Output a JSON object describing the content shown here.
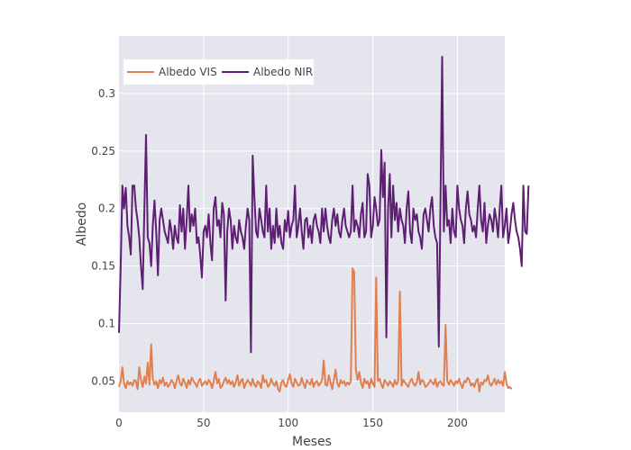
{
  "chart_data": {
    "type": "line",
    "title": "",
    "xlabel": "Meses",
    "ylabel": "Albedo",
    "xlim": [
      0,
      228
    ],
    "ylim": [
      0.023,
      0.35
    ],
    "x_ticks": [
      0,
      50,
      100,
      150,
      200
    ],
    "y_ticks": [
      0.05,
      0.1,
      0.15,
      0.2,
      0.25,
      0.3
    ],
    "y_tick_labels": [
      "0.05",
      "0.1",
      "0.15",
      "0.2",
      "0.25",
      "0.3"
    ],
    "grid": true,
    "legend_position": "top-left",
    "series": [
      {
        "name": "Albedo VIS",
        "color": "#e07f4f",
        "x_start": 0,
        "x_step": 1,
        "values": [
          0.045,
          0.05,
          0.062,
          0.048,
          0.044,
          0.05,
          0.047,
          0.049,
          0.046,
          0.051,
          0.05,
          0.043,
          0.062,
          0.051,
          0.045,
          0.054,
          0.048,
          0.066,
          0.047,
          0.082,
          0.052,
          0.047,
          0.05,
          0.044,
          0.051,
          0.048,
          0.053,
          0.046,
          0.049,
          0.045,
          0.047,
          0.051,
          0.049,
          0.044,
          0.05,
          0.055,
          0.048,
          0.046,
          0.052,
          0.049,
          0.044,
          0.051,
          0.047,
          0.053,
          0.05,
          0.048,
          0.045,
          0.05,
          0.052,
          0.046,
          0.048,
          0.05,
          0.047,
          0.051,
          0.049,
          0.044,
          0.05,
          0.058,
          0.048,
          0.052,
          0.044,
          0.046,
          0.05,
          0.053,
          0.048,
          0.051,
          0.047,
          0.05,
          0.045,
          0.049,
          0.055,
          0.046,
          0.05,
          0.052,
          0.044,
          0.048,
          0.051,
          0.049,
          0.046,
          0.052,
          0.047,
          0.045,
          0.05,
          0.048,
          0.044,
          0.055,
          0.049,
          0.051,
          0.045,
          0.047,
          0.052,
          0.048,
          0.046,
          0.05,
          0.043,
          0.041,
          0.049,
          0.051,
          0.046,
          0.045,
          0.051,
          0.056,
          0.048,
          0.045,
          0.052,
          0.049,
          0.046,
          0.047,
          0.053,
          0.048,
          0.044,
          0.051,
          0.049,
          0.047,
          0.052,
          0.045,
          0.049,
          0.05,
          0.046,
          0.048,
          0.051,
          0.068,
          0.047,
          0.046,
          0.055,
          0.049,
          0.043,
          0.051,
          0.06,
          0.048,
          0.045,
          0.051,
          0.048,
          0.05,
          0.046,
          0.049,
          0.047,
          0.05,
          0.148,
          0.145,
          0.06,
          0.051,
          0.058,
          0.049,
          0.044,
          0.052,
          0.048,
          0.05,
          0.044,
          0.052,
          0.048,
          0.045,
          0.14,
          0.05,
          0.052,
          0.047,
          0.044,
          0.051,
          0.049,
          0.046,
          0.05,
          0.048,
          0.045,
          0.051,
          0.047,
          0.05,
          0.128,
          0.046,
          0.051,
          0.049,
          0.047,
          0.045,
          0.05,
          0.052,
          0.048,
          0.046,
          0.049,
          0.058,
          0.047,
          0.051,
          0.05,
          0.045,
          0.046,
          0.048,
          0.051,
          0.049,
          0.047,
          0.052,
          0.045,
          0.049,
          0.05,
          0.047,
          0.046,
          0.099,
          0.05,
          0.047,
          0.051,
          0.049,
          0.046,
          0.05,
          0.048,
          0.052,
          0.047,
          0.044,
          0.05,
          0.049,
          0.053,
          0.051,
          0.046,
          0.048,
          0.045,
          0.05,
          0.052,
          0.041,
          0.049,
          0.047,
          0.051,
          0.05,
          0.055,
          0.048,
          0.046,
          0.049,
          0.052,
          0.047,
          0.051,
          0.048,
          0.05,
          0.046,
          0.058,
          0.048,
          0.044,
          0.045,
          0.043
        ]
      },
      {
        "name": "Albedo NIR",
        "color": "#5d1e73",
        "x_start": 0,
        "x_step": 1,
        "values": [
          0.092,
          0.15,
          0.22,
          0.2,
          0.218,
          0.185,
          0.175,
          0.16,
          0.22,
          0.22,
          0.2,
          0.19,
          0.175,
          0.15,
          0.13,
          0.2,
          0.264,
          0.175,
          0.17,
          0.15,
          0.185,
          0.207,
          0.18,
          0.142,
          0.19,
          0.2,
          0.19,
          0.18,
          0.175,
          0.17,
          0.19,
          0.18,
          0.165,
          0.185,
          0.175,
          0.17,
          0.203,
          0.18,
          0.2,
          0.165,
          0.19,
          0.22,
          0.18,
          0.195,
          0.185,
          0.2,
          0.17,
          0.175,
          0.16,
          0.14,
          0.18,
          0.185,
          0.175,
          0.195,
          0.17,
          0.155,
          0.2,
          0.21,
          0.185,
          0.19,
          0.175,
          0.205,
          0.195,
          0.12,
          0.18,
          0.2,
          0.19,
          0.165,
          0.185,
          0.175,
          0.17,
          0.19,
          0.18,
          0.175,
          0.165,
          0.185,
          0.2,
          0.19,
          0.075,
          0.246,
          0.21,
          0.18,
          0.175,
          0.2,
          0.19,
          0.18,
          0.175,
          0.22,
          0.18,
          0.2,
          0.165,
          0.185,
          0.17,
          0.2,
          0.175,
          0.185,
          0.17,
          0.165,
          0.19,
          0.18,
          0.198,
          0.175,
          0.185,
          0.19,
          0.22,
          0.175,
          0.185,
          0.2,
          0.18,
          0.165,
          0.19,
          0.192,
          0.175,
          0.185,
          0.17,
          0.19,
          0.195,
          0.185,
          0.18,
          0.17,
          0.2,
          0.18,
          0.2,
          0.185,
          0.175,
          0.17,
          0.19,
          0.2,
          0.185,
          0.195,
          0.18,
          0.175,
          0.19,
          0.2,
          0.185,
          0.18,
          0.175,
          0.18,
          0.22,
          0.18,
          0.19,
          0.185,
          0.175,
          0.195,
          0.205,
          0.175,
          0.18,
          0.23,
          0.22,
          0.175,
          0.185,
          0.21,
          0.2,
          0.185,
          0.19,
          0.251,
          0.21,
          0.24,
          0.088,
          0.2,
          0.23,
          0.175,
          0.22,
          0.19,
          0.205,
          0.18,
          0.2,
          0.19,
          0.185,
          0.17,
          0.2,
          0.215,
          0.18,
          0.17,
          0.2,
          0.19,
          0.195,
          0.18,
          0.175,
          0.165,
          0.195,
          0.2,
          0.19,
          0.18,
          0.2,
          0.21,
          0.185,
          0.175,
          0.17,
          0.08,
          0.21,
          0.332,
          0.18,
          0.22,
          0.185,
          0.19,
          0.17,
          0.2,
          0.18,
          0.175,
          0.22,
          0.2,
          0.19,
          0.185,
          0.17,
          0.2,
          0.215,
          0.195,
          0.19,
          0.18,
          0.185,
          0.175,
          0.2,
          0.22,
          0.19,
          0.18,
          0.205,
          0.17,
          0.185,
          0.195,
          0.19,
          0.18,
          0.2,
          0.19,
          0.175,
          0.2,
          0.22,
          0.175,
          0.185,
          0.2,
          0.17,
          0.18,
          0.195,
          0.205,
          0.19,
          0.18,
          0.175,
          0.165,
          0.15,
          0.22,
          0.18,
          0.178,
          0.22
        ]
      }
    ]
  }
}
